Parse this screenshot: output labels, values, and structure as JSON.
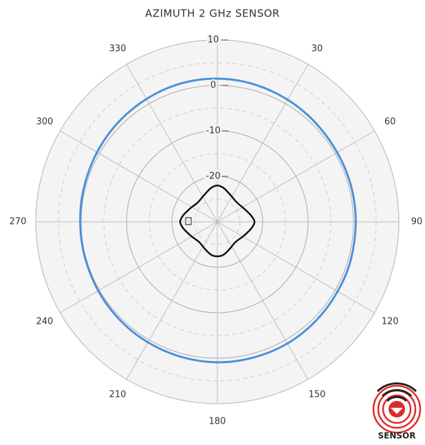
{
  "chart_data": {
    "type": "polar",
    "title": "AZIMUTH 2 GHz SENSOR",
    "theta": [
      0,
      10,
      20,
      30,
      40,
      50,
      60,
      70,
      80,
      90,
      100,
      110,
      120,
      130,
      140,
      150,
      160,
      170,
      180,
      190,
      200,
      210,
      220,
      230,
      240,
      250,
      260,
      270,
      280,
      290,
      300,
      310,
      320,
      330,
      340,
      350
    ],
    "series": [
      {
        "color": "#4a90d9",
        "values": [
          1.5,
          1.4,
          1.2,
          1.0,
          0.8,
          0.6,
          0.5,
          0.5,
          0.5,
          0.5,
          0.5,
          0.6,
          0.6,
          0.7,
          0.8,
          0.9,
          0.9,
          0.9,
          0.9,
          0.8,
          0.7,
          0.6,
          0.5,
          0.4,
          0.3,
          0.2,
          0.2,
          0.2,
          0.3,
          0.4,
          0.6,
          0.8,
          1.0,
          1.2,
          1.4,
          1.5
        ]
      },
      {
        "color": "#111111",
        "values": [
          -22.0,
          -22.4,
          -23.1,
          -23.6,
          -23.9,
          -23.9,
          -23.6,
          -23.1,
          -22.4,
          -21.8,
          -22.3,
          -23.0,
          -23.5,
          -23.9,
          -24.0,
          -23.7,
          -23.2,
          -22.6,
          -22.4,
          -22.6,
          -23.2,
          -23.7,
          -24.0,
          -23.9,
          -23.5,
          -23.0,
          -22.3,
          -21.8,
          -22.3,
          -23.0,
          -23.5,
          -23.9,
          -23.9,
          -23.6,
          -23.1,
          -22.4
        ]
      }
    ],
    "rlim": [
      -30,
      10
    ],
    "rticks": [
      -20,
      -10,
      0,
      10
    ],
    "thetaticks": [
      30,
      60,
      90,
      120,
      150,
      180,
      210,
      240,
      270,
      300,
      330
    ],
    "grid": true
  },
  "logo": {
    "text": "SENSOR"
  }
}
